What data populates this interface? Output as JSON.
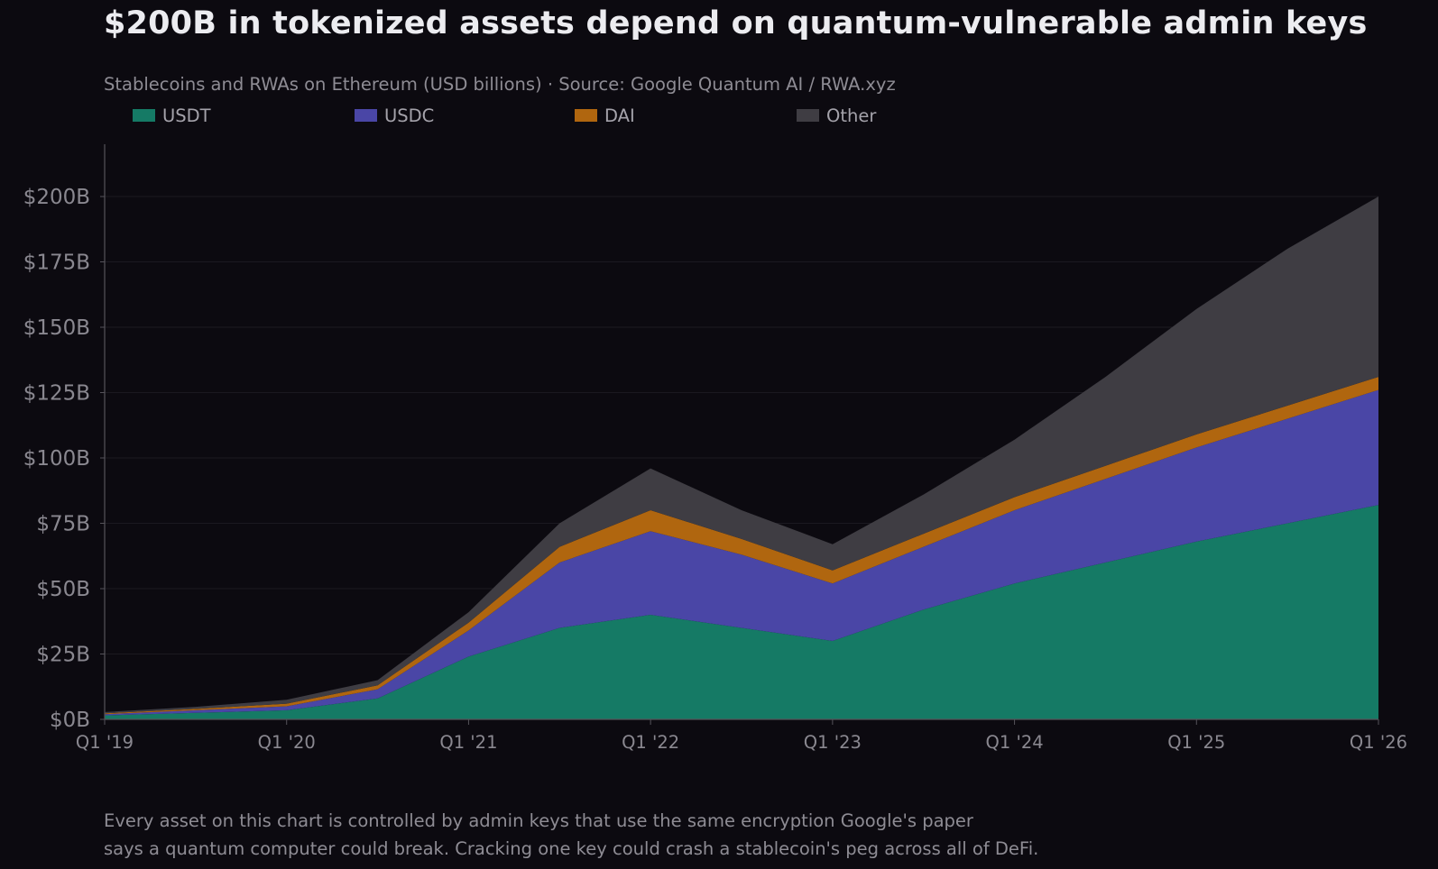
{
  "header": {
    "title": "$200B in tokenized assets depend on quantum-vulnerable admin keys",
    "subtitle": "Stablecoins and RWAs on Ethereum (USD billions)  ·  Source: Google Quantum AI / RWA.xyz"
  },
  "footer": {
    "caption_line1": "Every asset on this chart is controlled by admin keys that use the same encryption Google's paper",
    "caption_line2": "says a quantum computer could break. Cracking one key could crash a stablecoin's peg across all of DeFi."
  },
  "colors": {
    "background": "#0c0a10",
    "usdt": "#157a65",
    "usdc": "#4a46a6",
    "dai": "#b0660f",
    "other": "#3f3d43",
    "axis": "#55535a",
    "tick_text": "#8a8890"
  },
  "chart_data": {
    "type": "area",
    "stacked": true,
    "title": "$200B in tokenized assets depend on quantum-vulnerable admin keys",
    "subtitle": "Stablecoins and RWAs on Ethereum (USD billions)  ·  Source: Google Quantum AI / RWA.xyz",
    "xlabel": "",
    "ylabel": "",
    "x": [
      2019.0,
      2019.5,
      2020.0,
      2020.5,
      2021.0,
      2021.5,
      2022.0,
      2022.5,
      2023.0,
      2023.5,
      2024.0,
      2024.5,
      2025.0,
      2025.5,
      2026.0
    ],
    "x_ticks": [
      2019,
      2020,
      2021,
      2022,
      2023,
      2024,
      2025,
      2026
    ],
    "x_tick_labels": [
      "Q1 '19",
      "Q1 '20",
      "Q1 '21",
      "Q1 '22",
      "Q1 '23",
      "Q1 '24",
      "Q1 '25",
      "Q1 '26"
    ],
    "xlim": [
      2019.0,
      2026.0
    ],
    "ylim": [
      0,
      220
    ],
    "y_ticks": [
      0,
      25,
      50,
      75,
      100,
      125,
      150,
      175,
      200
    ],
    "y_tick_labels": [
      "$0B",
      "$25B",
      "$50B",
      "$75B",
      "$100B",
      "$125B",
      "$150B",
      "$175B",
      "$200B"
    ],
    "grid": true,
    "legend_position": "top-left",
    "series": [
      {
        "name": "USDT",
        "color": "#157a65",
        "values": [
          1.5,
          2.5,
          3.5,
          8,
          24,
          35,
          40,
          35,
          30,
          42,
          52,
          60,
          68,
          75,
          82
        ]
      },
      {
        "name": "USDC",
        "color": "#4a46a6",
        "values": [
          0.5,
          1,
          1.5,
          3.5,
          10,
          25,
          32,
          28,
          22,
          24,
          28,
          32,
          36,
          40,
          44
        ]
      },
      {
        "name": "DAI",
        "color": "#b0660f",
        "values": [
          0.3,
          0.5,
          1,
          1.5,
          3,
          6,
          8,
          6,
          5,
          5,
          5,
          5,
          5,
          5,
          5
        ]
      },
      {
        "name": "Other",
        "color": "#3f3d43",
        "values": [
          0.5,
          0.8,
          1.5,
          2,
          4,
          9,
          16,
          11,
          10,
          15,
          22,
          34,
          48,
          60,
          69
        ]
      }
    ]
  }
}
